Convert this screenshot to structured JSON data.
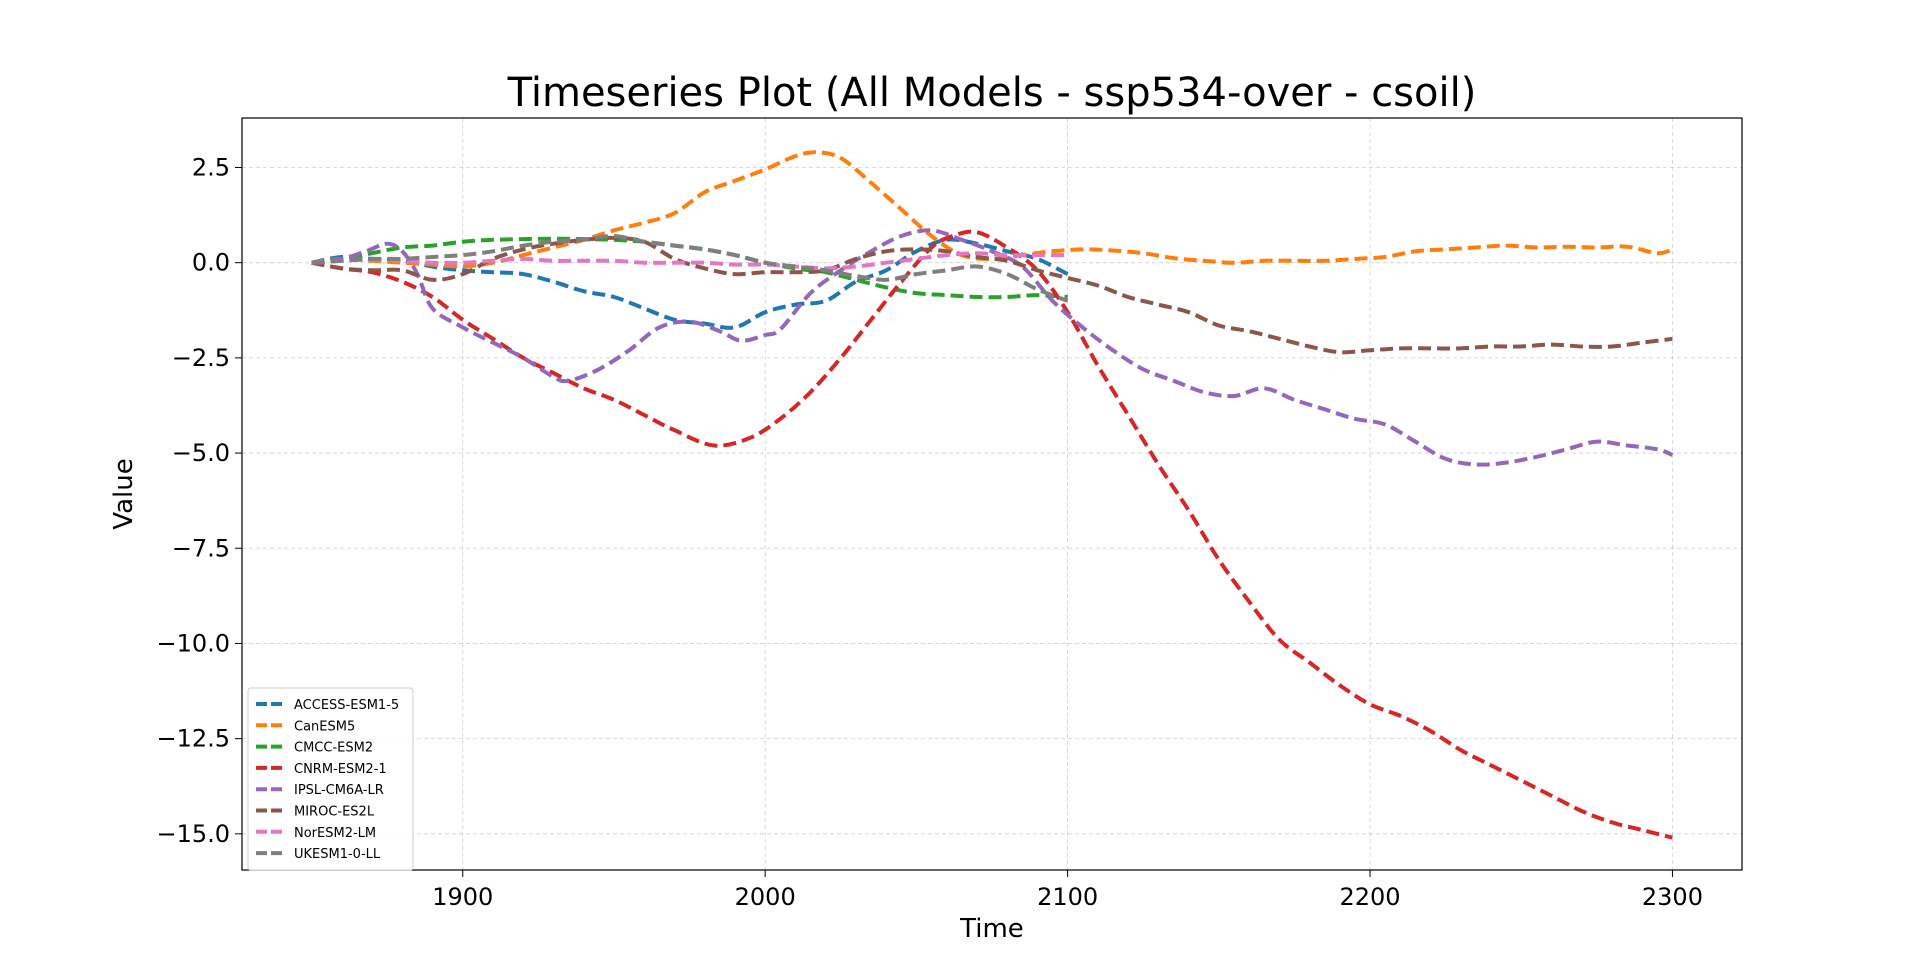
{
  "chart_data": {
    "type": "line",
    "title": "Timeseries Plot (All Models - ssp534-over - csoil)",
    "xlabel": "Time",
    "ylabel": "Value",
    "xlim": [
      1827,
      2323
    ],
    "ylim": [
      -15.95,
      3.8
    ],
    "xticks": [
      1900,
      2000,
      2100,
      2200,
      2300
    ],
    "xtick_labels": [
      "1900",
      "2000",
      "2100",
      "2200",
      "2300"
    ],
    "yticks": [
      2.5,
      0.0,
      -2.5,
      -5.0,
      -7.5,
      -10.0,
      -12.5,
      -15.0
    ],
    "ytick_labels": [
      "2.5",
      "0.0",
      "−2.5",
      "−5.0",
      "−7.5",
      "−10.0",
      "−12.5",
      "−15.0"
    ],
    "grid": true,
    "legend_position": "lower-left",
    "series": [
      {
        "name": "ACCESS-ESM1-5",
        "color": "#1f77b4",
        "x": [
          1850,
          1860,
          1870,
          1880,
          1890,
          1900,
          1910,
          1920,
          1930,
          1940,
          1950,
          1960,
          1970,
          1980,
          1990,
          2000,
          2010,
          2020,
          2030,
          2040,
          2050,
          2060,
          2070,
          2080,
          2090,
          2100
        ],
        "y": [
          0,
          0.15,
          0.1,
          0.05,
          -0.1,
          -0.2,
          -0.25,
          -0.3,
          -0.5,
          -0.75,
          -0.9,
          -1.2,
          -1.5,
          -1.6,
          -1.7,
          -1.3,
          -1.1,
          -1.0,
          -0.5,
          -0.2,
          0.3,
          0.6,
          0.5,
          0.3,
          0.1,
          -0.3
        ]
      },
      {
        "name": "CanESM5",
        "color": "#ff7f0e",
        "x": [
          1850,
          1860,
          1870,
          1880,
          1890,
          1900,
          1910,
          1920,
          1930,
          1940,
          1950,
          1960,
          1970,
          1980,
          1990,
          2000,
          2010,
          2017,
          2025,
          2035,
          2045,
          2055,
          2065,
          2075,
          2085,
          2095,
          2105,
          2115,
          2125,
          2135,
          2145,
          2155,
          2165,
          2175,
          2185,
          2195,
          2205,
          2215,
          2225,
          2235,
          2245,
          2255,
          2265,
          2275,
          2285,
          2295,
          2300
        ],
        "y": [
          0,
          0.1,
          0.05,
          0.0,
          -0.05,
          -0.1,
          0.0,
          0.2,
          0.4,
          0.6,
          0.85,
          1.05,
          1.3,
          1.85,
          2.15,
          2.45,
          2.8,
          2.9,
          2.75,
          2.1,
          1.4,
          0.7,
          0.2,
          0.1,
          0.2,
          0.3,
          0.35,
          0.32,
          0.25,
          0.12,
          0.05,
          0.0,
          0.05,
          0.05,
          0.05,
          0.1,
          0.15,
          0.3,
          0.35,
          0.4,
          0.45,
          0.4,
          0.42,
          0.4,
          0.42,
          0.25,
          0.35
        ]
      },
      {
        "name": "CMCC-ESM2",
        "color": "#2ca02c",
        "x": [
          1850,
          1860,
          1870,
          1880,
          1890,
          1900,
          1910,
          1920,
          1930,
          1940,
          1950,
          1960,
          1970,
          1980,
          1990,
          2000,
          2010,
          2020,
          2030,
          2040,
          2050,
          2060,
          2070,
          2080,
          2090,
          2100
        ],
        "y": [
          0,
          0.1,
          0.25,
          0.4,
          0.45,
          0.55,
          0.6,
          0.62,
          0.63,
          0.62,
          0.6,
          0.55,
          0.45,
          0.35,
          0.2,
          0.0,
          -0.15,
          -0.25,
          -0.45,
          -0.65,
          -0.8,
          -0.85,
          -0.9,
          -0.9,
          -0.85,
          -0.9
        ]
      },
      {
        "name": "CNRM-ESM2-1",
        "color": "#d62728",
        "x": [
          1850,
          1860,
          1870,
          1880,
          1890,
          1900,
          1910,
          1920,
          1930,
          1940,
          1950,
          1960,
          1970,
          1983,
          1995,
          2005,
          2015,
          2025,
          2035,
          2045,
          2055,
          2062,
          2070,
          2080,
          2090,
          2100,
          2110,
          2120,
          2130,
          2140,
          2150,
          2160,
          2170,
          2180,
          2190,
          2200,
          2210,
          2220,
          2230,
          2240,
          2250,
          2260,
          2270,
          2280,
          2290,
          2300
        ],
        "y": [
          0,
          -0.15,
          -0.25,
          -0.5,
          -0.9,
          -1.5,
          -2.0,
          -2.5,
          -2.9,
          -3.3,
          -3.6,
          -4.0,
          -4.4,
          -4.8,
          -4.6,
          -4.1,
          -3.4,
          -2.5,
          -1.5,
          -0.5,
          0.4,
          0.7,
          0.8,
          0.4,
          -0.2,
          -1.3,
          -2.7,
          -4.0,
          -5.3,
          -6.5,
          -7.8,
          -8.9,
          -9.9,
          -10.5,
          -11.1,
          -11.6,
          -11.9,
          -12.3,
          -12.8,
          -13.2,
          -13.6,
          -14.0,
          -14.4,
          -14.7,
          -14.9,
          -15.1
        ]
      },
      {
        "name": "IPSL-CM6A-LR",
        "color": "#9467bd",
        "x": [
          1850,
          1860,
          1868,
          1875,
          1880,
          1885,
          1890,
          1900,
          1910,
          1920,
          1930,
          1935,
          1945,
          1955,
          1965,
          1975,
          1985,
          1992,
          2000,
          2005,
          2015,
          2025,
          2035,
          2045,
          2055,
          2065,
          2075,
          2085,
          2095,
          2105,
          2115,
          2125,
          2135,
          2145,
          2155,
          2165,
          2175,
          2185,
          2195,
          2205,
          2215,
          2225,
          2235,
          2245,
          2255,
          2265,
          2275,
          2285,
          2295,
          2300
        ],
        "y": [
          0,
          0.1,
          0.3,
          0.5,
          0.3,
          -0.3,
          -1.2,
          -1.7,
          -2.1,
          -2.5,
          -3.0,
          -3.1,
          -2.8,
          -2.3,
          -1.7,
          -1.55,
          -1.8,
          -2.05,
          -1.9,
          -1.75,
          -0.8,
          -0.2,
          0.3,
          0.7,
          0.85,
          0.6,
          0.3,
          -0.1,
          -1.0,
          -1.7,
          -2.3,
          -2.8,
          -3.1,
          -3.4,
          -3.5,
          -3.3,
          -3.6,
          -3.85,
          -4.1,
          -4.25,
          -4.7,
          -5.15,
          -5.3,
          -5.25,
          -5.1,
          -4.9,
          -4.7,
          -4.8,
          -4.9,
          -5.05
        ]
      },
      {
        "name": "MIROC-ES2L",
        "color": "#8c564b",
        "x": [
          1850,
          1860,
          1870,
          1880,
          1890,
          1900,
          1910,
          1920,
          1930,
          1940,
          1950,
          1960,
          1970,
          1980,
          1990,
          2000,
          2010,
          2020,
          2030,
          2040,
          2050,
          2060,
          2070,
          2080,
          2090,
          2100,
          2110,
          2120,
          2130,
          2140,
          2150,
          2160,
          2170,
          2180,
          2190,
          2200,
          2210,
          2220,
          2230,
          2240,
          2250,
          2260,
          2270,
          2280,
          2290,
          2300
        ],
        "y": [
          0,
          -0.15,
          -0.2,
          -0.2,
          -0.45,
          -0.3,
          0.1,
          0.35,
          0.5,
          0.6,
          0.65,
          0.55,
          0.1,
          -0.15,
          -0.3,
          -0.25,
          -0.25,
          -0.2,
          0.1,
          0.3,
          0.35,
          0.3,
          0.15,
          0.05,
          -0.2,
          -0.4,
          -0.6,
          -0.9,
          -1.1,
          -1.3,
          -1.65,
          -1.8,
          -2.0,
          -2.2,
          -2.35,
          -2.3,
          -2.25,
          -2.25,
          -2.25,
          -2.2,
          -2.2,
          -2.15,
          -2.2,
          -2.2,
          -2.1,
          -2.0
        ]
      },
      {
        "name": "NorESM2-LM",
        "color": "#e377c2",
        "x": [
          1850,
          1860,
          1870,
          1880,
          1890,
          1900,
          1910,
          1920,
          1930,
          1940,
          1950,
          1960,
          1970,
          1980,
          1990,
          2000,
          2010,
          2020,
          2030,
          2040,
          2050,
          2060,
          2070,
          2080,
          2090,
          2100
        ],
        "y": [
          0,
          0.05,
          0.1,
          0.05,
          0.0,
          0.0,
          0.05,
          0.1,
          0.05,
          0.05,
          0.05,
          0.0,
          0.0,
          0.0,
          -0.05,
          -0.05,
          -0.1,
          -0.15,
          -0.1,
          0.0,
          0.1,
          0.2,
          0.25,
          0.2,
          0.2,
          0.2
        ]
      },
      {
        "name": "UKESM1-0-LL",
        "color": "#7f7f7f",
        "x": [
          1850,
          1860,
          1870,
          1880,
          1890,
          1900,
          1910,
          1920,
          1930,
          1940,
          1950,
          1960,
          1970,
          1980,
          1990,
          2000,
          2010,
          2020,
          2030,
          2040,
          2050,
          2060,
          2070,
          2080,
          2090,
          2100
        ],
        "y": [
          0,
          0.05,
          0.1,
          0.1,
          0.15,
          0.2,
          0.3,
          0.45,
          0.55,
          0.6,
          0.7,
          0.55,
          0.45,
          0.35,
          0.2,
          0.0,
          -0.1,
          -0.2,
          -0.35,
          -0.45,
          -0.3,
          -0.2,
          -0.1,
          -0.3,
          -0.7,
          -1.0
        ]
      }
    ]
  }
}
